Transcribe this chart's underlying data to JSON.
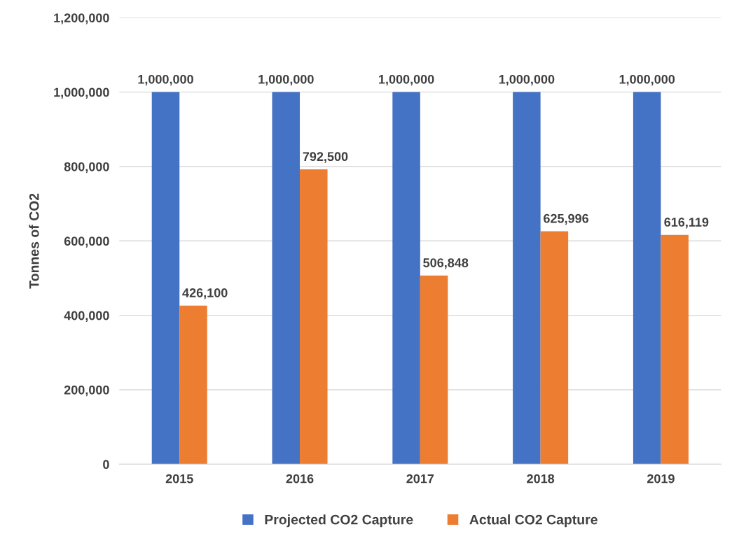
{
  "chart_data": {
    "type": "bar",
    "ylabel": "Tonnes of CO2",
    "categories": [
      "2015",
      "2016",
      "2017",
      "2018",
      "2019"
    ],
    "series": [
      {
        "name": "Projected CO2 Capture",
        "color": "#4472c4",
        "values": [
          1000000,
          1000000,
          1000000,
          1000000,
          1000000
        ],
        "value_labels": [
          "1,000,000",
          "1,000,000",
          "1,000,000",
          "1,000,000",
          "1,000,000"
        ]
      },
      {
        "name": "Actual CO2 Capture",
        "color": "#ed7d31",
        "values": [
          426100,
          792500,
          506848,
          625996,
          616119
        ],
        "value_labels": [
          "426,100",
          "792,500",
          "506,848",
          "625,996",
          "616,119"
        ]
      }
    ],
    "ylim": [
      0,
      1200000
    ],
    "yticks": [
      {
        "value": 0,
        "label": "0"
      },
      {
        "value": 200000,
        "label": "200,000"
      },
      {
        "value": 400000,
        "label": "400,000"
      },
      {
        "value": 600000,
        "label": "600,000"
      },
      {
        "value": 800000,
        "label": "800,000"
      },
      {
        "value": 1000000,
        "label": "1,000,000"
      },
      {
        "value": 1200000,
        "label": "1,200,000"
      }
    ],
    "grid": "y",
    "legend": "bottom"
  }
}
